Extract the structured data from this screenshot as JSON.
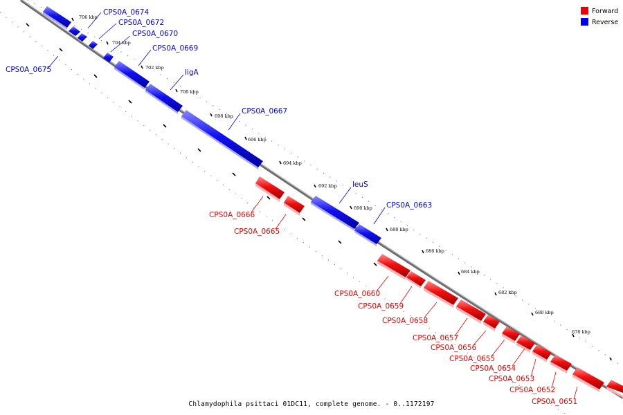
{
  "caption": "Chlamydophila psittaci 01DC11, complete genome. - 0..1172197",
  "legend": [
    {
      "label": "Forward",
      "color": "#ee0000"
    },
    {
      "label": "Reverse",
      "color": "#0000ee"
    }
  ],
  "tick_labels": [
    "706 kbp",
    "704 kbp",
    "702 kbp",
    "700 kbp",
    "698 kbp",
    "696 kbp",
    "694 kbp",
    "692 kbp",
    "690 kbp",
    "688 kbp",
    "686 kbp",
    "684 kbp",
    "682 kbp",
    "680 kbp",
    "678 kbp"
  ],
  "genes": [
    {
      "label": "CPS0A_0674",
      "strand": "reverse"
    },
    {
      "label": "CPS0A_0672",
      "strand": "reverse"
    },
    {
      "label": "CPS0A_0670",
      "strand": "reverse"
    },
    {
      "label": "CPS0A_0669",
      "strand": "reverse"
    },
    {
      "label": "CPS0A_0675",
      "strand": "reverse"
    },
    {
      "label": "ligA",
      "strand": "reverse"
    },
    {
      "label": "CPS0A_0667",
      "strand": "reverse"
    },
    {
      "label": "leuS",
      "strand": "reverse"
    },
    {
      "label": "CPS0A_0663",
      "strand": "reverse"
    },
    {
      "label": "CPS0A_0666",
      "strand": "forward"
    },
    {
      "label": "CPS0A_0665",
      "strand": "forward"
    },
    {
      "label": "CPS0A_0660",
      "strand": "forward"
    },
    {
      "label": "CPS0A_0659",
      "strand": "forward"
    },
    {
      "label": "CPS0A_0658",
      "strand": "forward"
    },
    {
      "label": "CPS0A_0657",
      "strand": "forward"
    },
    {
      "label": "CPS0A_0656",
      "strand": "forward"
    },
    {
      "label": "CPS0A_0655",
      "strand": "forward"
    },
    {
      "label": "CPS0A_0654",
      "strand": "forward"
    },
    {
      "label": "CPS0A_0653",
      "strand": "forward"
    },
    {
      "label": "CPS0A_0652",
      "strand": "forward"
    },
    {
      "label": "CPS0A_0651",
      "strand": "forward"
    }
  ]
}
